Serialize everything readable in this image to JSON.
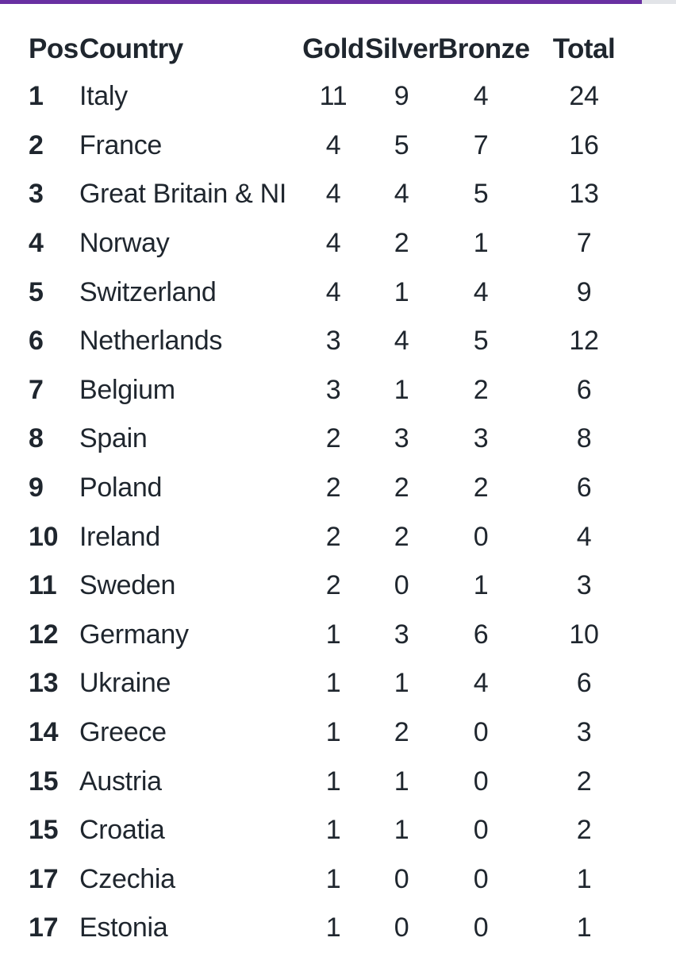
{
  "page": {
    "background_color": "#ffffff",
    "text_color": "#1f262e"
  },
  "progress_bar": {
    "fill_color": "#6930a2",
    "track_color": "#e2e4e8",
    "fill_percent": 95
  },
  "table": {
    "headers": {
      "pos": "Pos",
      "country": "Country",
      "gold": "Gold",
      "silver": "Silver",
      "bronze": "Bronze",
      "total": "Total"
    },
    "rows": [
      {
        "pos": "1",
        "country": "Italy",
        "gold": "11",
        "silver": "9",
        "bronze": "4",
        "total": "24"
      },
      {
        "pos": "2",
        "country": "France",
        "gold": "4",
        "silver": "5",
        "bronze": "7",
        "total": "16"
      },
      {
        "pos": "3",
        "country": "Great Britain & NI",
        "gold": "4",
        "silver": "4",
        "bronze": "5",
        "total": "13"
      },
      {
        "pos": "4",
        "country": "Norway",
        "gold": "4",
        "silver": "2",
        "bronze": "1",
        "total": "7"
      },
      {
        "pos": "5",
        "country": "Switzerland",
        "gold": "4",
        "silver": "1",
        "bronze": "4",
        "total": "9"
      },
      {
        "pos": "6",
        "country": "Netherlands",
        "gold": "3",
        "silver": "4",
        "bronze": "5",
        "total": "12"
      },
      {
        "pos": "7",
        "country": "Belgium",
        "gold": "3",
        "silver": "1",
        "bronze": "2",
        "total": "6"
      },
      {
        "pos": "8",
        "country": "Spain",
        "gold": "2",
        "silver": "3",
        "bronze": "3",
        "total": "8"
      },
      {
        "pos": "9",
        "country": "Poland",
        "gold": "2",
        "silver": "2",
        "bronze": "2",
        "total": "6"
      },
      {
        "pos": "10",
        "country": "Ireland",
        "gold": "2",
        "silver": "2",
        "bronze": "0",
        "total": "4"
      },
      {
        "pos": "11",
        "country": "Sweden",
        "gold": "2",
        "silver": "0",
        "bronze": "1",
        "total": "3"
      },
      {
        "pos": "12",
        "country": "Germany",
        "gold": "1",
        "silver": "3",
        "bronze": "6",
        "total": "10"
      },
      {
        "pos": "13",
        "country": "Ukraine",
        "gold": "1",
        "silver": "1",
        "bronze": "4",
        "total": "6"
      },
      {
        "pos": "14",
        "country": "Greece",
        "gold": "1",
        "silver": "2",
        "bronze": "0",
        "total": "3"
      },
      {
        "pos": "15",
        "country": "Austria",
        "gold": "1",
        "silver": "1",
        "bronze": "0",
        "total": "2"
      },
      {
        "pos": "15",
        "country": "Croatia",
        "gold": "1",
        "silver": "1",
        "bronze": "0",
        "total": "2"
      },
      {
        "pos": "17",
        "country": "Czechia",
        "gold": "1",
        "silver": "0",
        "bronze": "0",
        "total": "1"
      },
      {
        "pos": "17",
        "country": "Estonia",
        "gold": "1",
        "silver": "0",
        "bronze": "0",
        "total": "1"
      }
    ]
  }
}
